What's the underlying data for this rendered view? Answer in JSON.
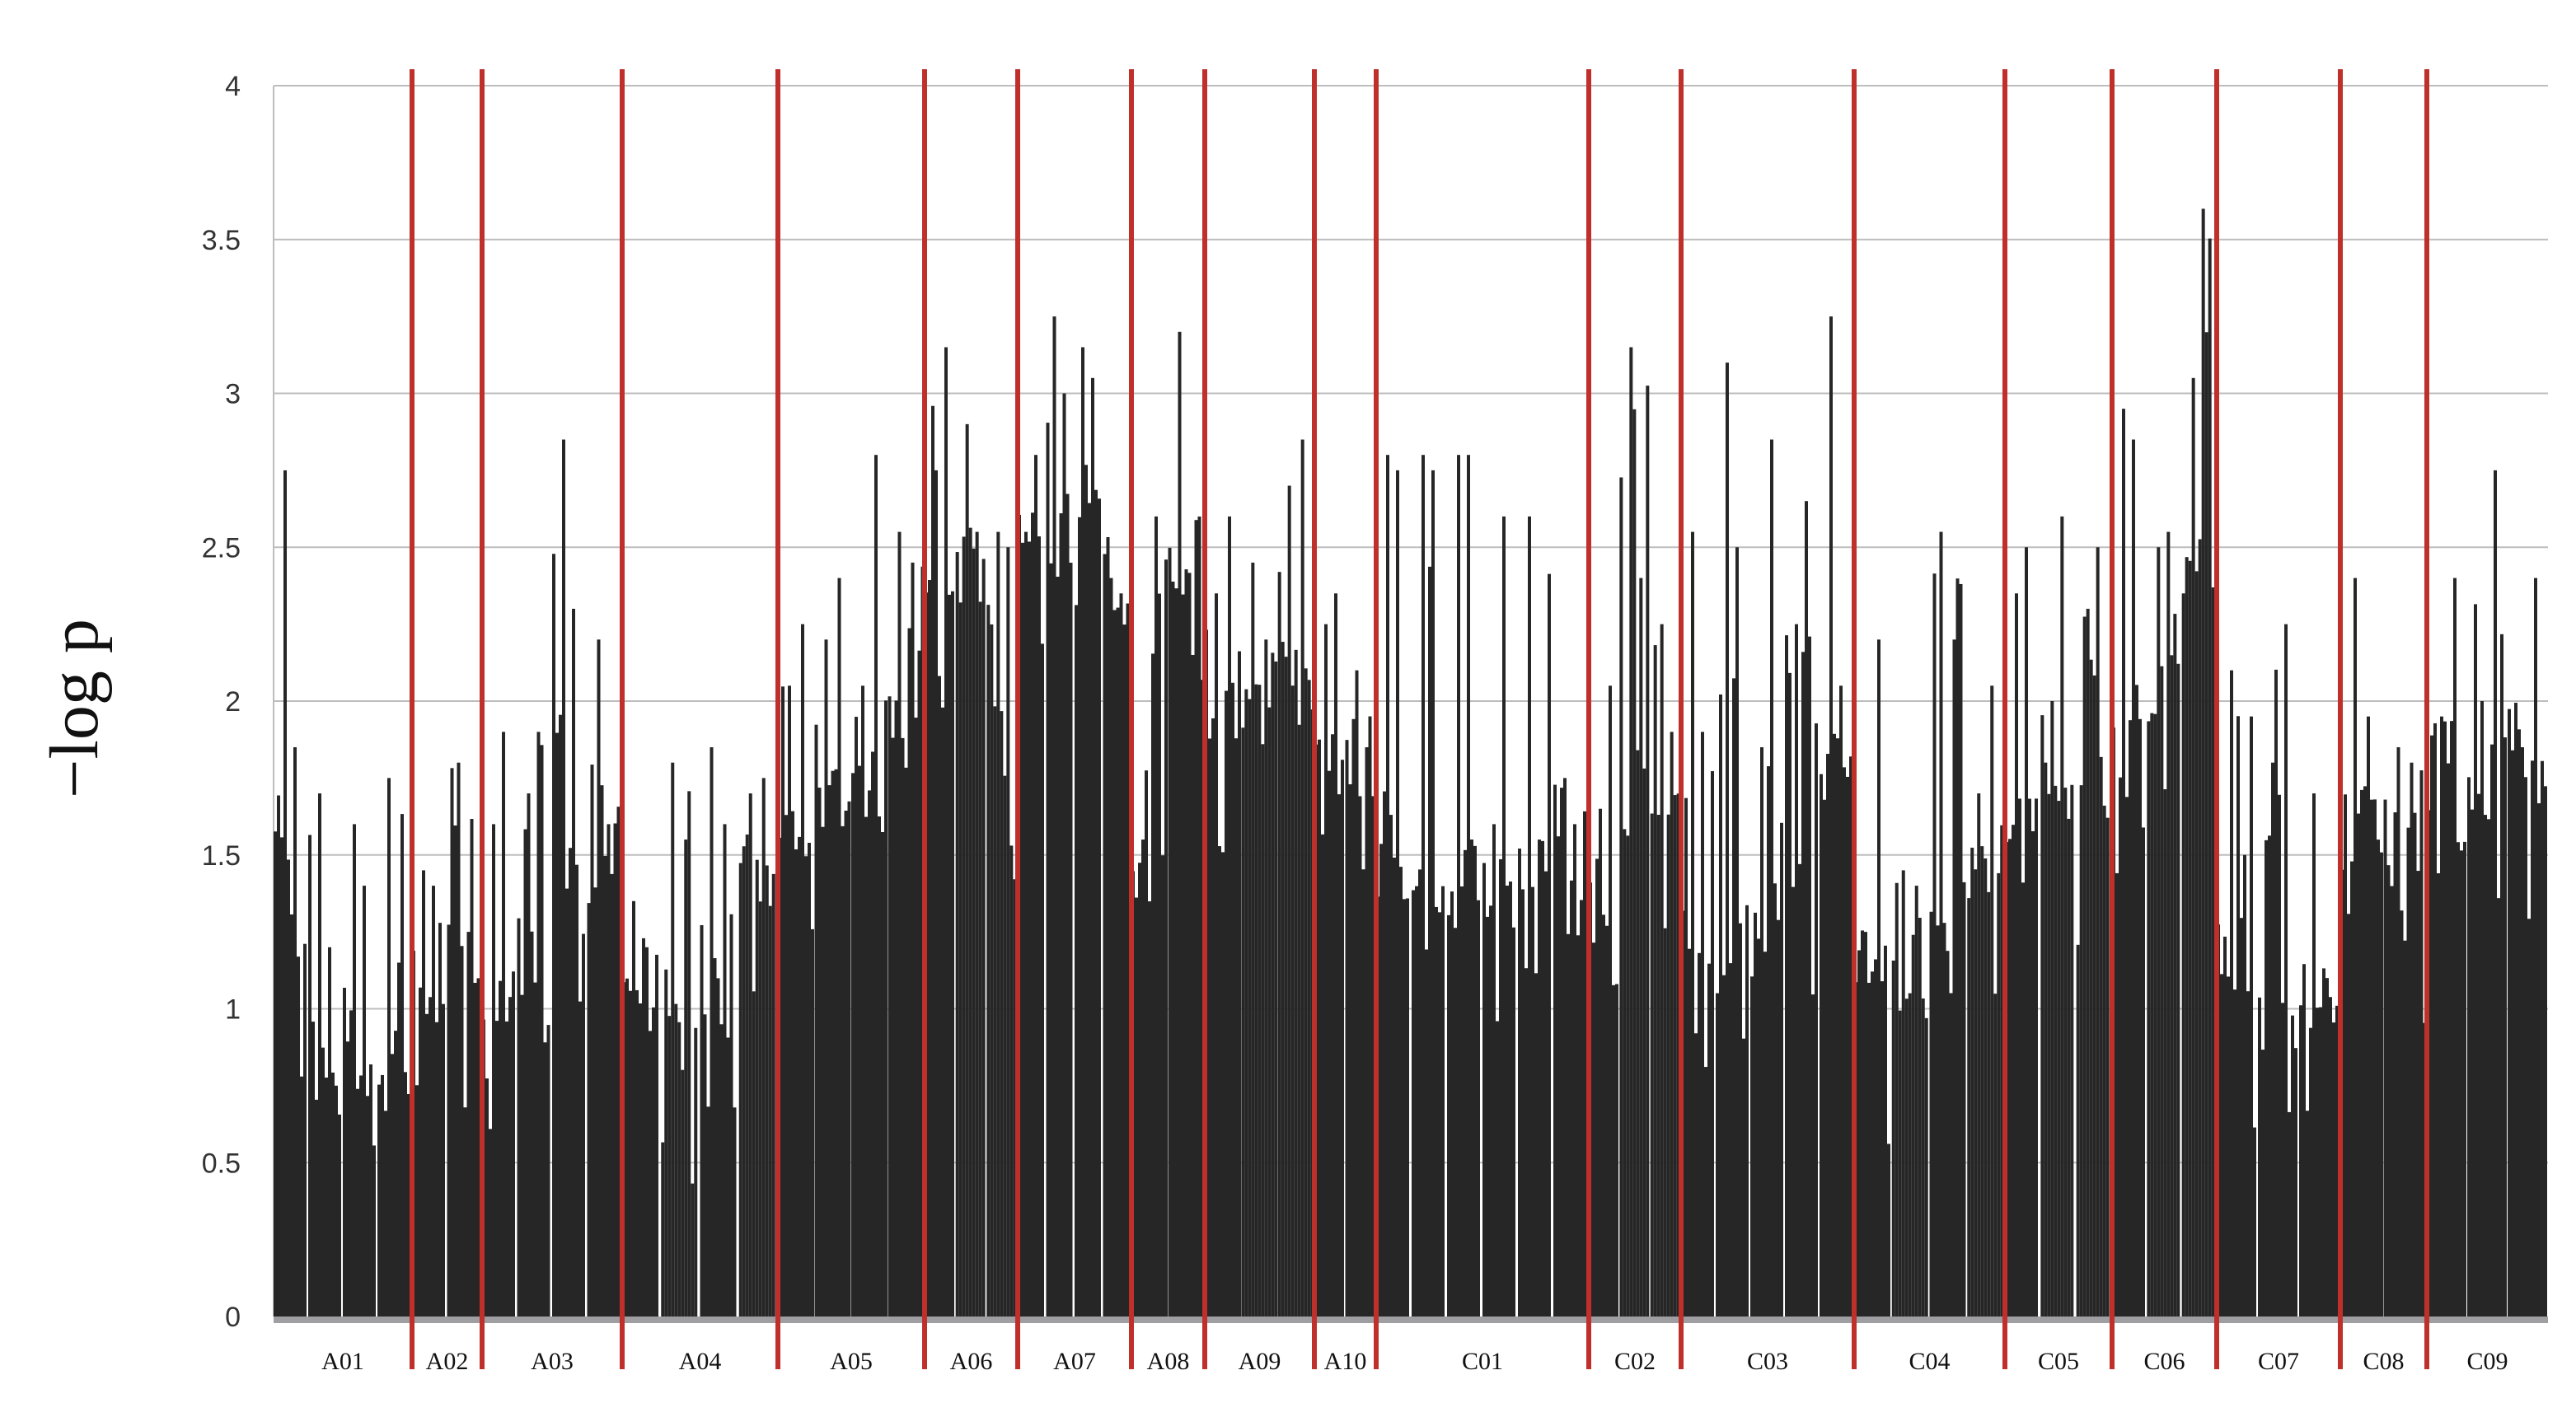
{
  "chart_data": {
    "type": "bar",
    "title": "",
    "xlabel": "",
    "ylabel": "−log p",
    "ylim": [
      0,
      4
    ],
    "yticks": [
      "0",
      "0.5",
      "1",
      "1.5",
      "2",
      "2.5",
      "3",
      "3.5",
      "4"
    ],
    "grid": "horizontal",
    "colors": {
      "bars": "#262626",
      "separators": "#c0302a",
      "grid": "#bdbdbd",
      "baseline": "#9e9ea3"
    },
    "chromosomes": [
      {
        "name": "A01",
        "segments": [
          [
            1.5,
            2.75,
            1.0,
            1.85
          ],
          [
            0.9,
            1.7,
            0.6,
            1.2
          ],
          [
            0.85,
            1.6,
            0.55,
            1.4
          ],
          [
            0.8,
            1.75,
            0.65,
            1.15
          ]
        ]
      },
      {
        "name": "A02",
        "segments": [
          [
            0.95,
            1.45,
            0.8,
            1.4
          ],
          [
            1.1,
            1.8,
            0.85,
            1.25
          ]
        ]
      },
      {
        "name": "A03",
        "segments": [
          [
            0.75,
            1.6,
            0.95,
            1.9
          ],
          [
            1.2,
            1.7,
            0.85,
            1.9
          ],
          [
            2.0,
            2.85,
            1.0,
            2.3
          ],
          [
            1.6,
            2.2,
            1.5,
            1.6
          ]
        ]
      },
      {
        "name": "A04",
        "segments": [
          [
            1.0,
            1.35,
            0.9,
            1.2
          ],
          [
            0.9,
            1.8,
            0.7,
            1.55
          ],
          [
            1.05,
            1.85,
            0.8,
            1.6
          ],
          [
            1.35,
            1.7,
            1.3,
            1.75
          ]
        ]
      },
      {
        "name": "A05",
        "segments": [
          [
            1.45,
            2.05,
            1.35,
            2.25
          ],
          [
            1.6,
            2.2,
            1.55,
            2.4
          ],
          [
            1.65,
            2.05,
            1.55,
            2.8
          ],
          [
            1.8,
            2.55,
            1.95,
            2.45
          ]
        ]
      },
      {
        "name": "A06",
        "segments": [
          [
            2.25,
            2.75,
            2.25,
            3.15
          ],
          [
            2.3,
            2.9,
            2.3,
            2.55
          ],
          [
            2.2,
            2.55,
            1.3,
            2.5
          ]
        ]
      },
      {
        "name": "A07",
        "segments": [
          [
            2.4,
            2.55,
            2.35,
            2.8
          ],
          [
            2.45,
            3.25,
            2.6,
            3.0
          ],
          [
            2.45,
            3.15,
            2.65,
            3.05
          ],
          [
            2.35,
            2.4,
            2.2,
            2.35
          ]
        ]
      },
      {
        "name": "A08",
        "segments": [
          [
            1.25,
            1.55,
            2.35,
            2.6
          ],
          [
            2.3,
            3.2,
            2.4,
            2.15
          ]
        ]
      },
      {
        "name": "A09",
        "segments": [
          [
            1.85,
            2.35,
            1.8,
            2.6
          ],
          [
            1.95,
            2.45,
            1.95,
            2.2
          ],
          [
            1.95,
            2.7,
            1.9,
            2.85
          ]
        ]
      },
      {
        "name": "A10",
        "segments": [
          [
            1.7,
            2.25,
            1.65,
            2.35
          ],
          [
            1.75,
            2.1,
            1.6,
            1.85
          ]
        ]
      },
      {
        "name": "C01",
        "segments": [
          [
            1.55,
            2.8,
            1.3,
            2.75
          ],
          [
            1.2,
            2.8,
            1.25,
            2.75
          ],
          [
            1.25,
            2.8,
            1.35,
            2.8
          ],
          [
            1.3,
            1.6,
            1.2,
            2.6
          ],
          [
            1.35,
            2.6,
            1.3,
            1.55
          ],
          [
            1.25,
            1.75,
            1.2,
            1.6
          ]
        ]
      },
      {
        "name": "C02",
        "segments": [
          [
            1.2,
            1.65,
            1.05,
            2.05
          ],
          [
            1.5,
            3.15,
            1.75,
            2.4
          ],
          [
            1.55,
            2.25,
            1.6,
            1.9
          ]
        ]
      },
      {
        "name": "C03",
        "segments": [
          [
            1.25,
            2.55,
            0.95,
            1.9
          ],
          [
            1.0,
            3.1,
            1.15,
            2.5
          ],
          [
            1.1,
            1.85,
            1.2,
            2.85
          ],
          [
            1.3,
            2.25,
            1.35,
            2.65
          ],
          [
            1.6,
            3.25,
            1.75,
            2.05
          ]
        ]
      },
      {
        "name": "C04",
        "segments": [
          [
            1.05,
            1.25,
            0.9,
            2.2
          ],
          [
            1.0,
            1.45,
            0.85,
            1.4
          ],
          [
            1.15,
            2.55,
            1.2,
            2.2
          ],
          [
            1.3,
            1.7,
            1.4,
            2.05
          ]
        ]
      },
      {
        "name": "C05",
        "segments": [
          [
            1.4,
            2.35,
            1.6,
            2.5
          ],
          [
            1.6,
            2.0,
            1.55,
            2.6
          ],
          [
            1.5,
            2.3,
            1.6,
            2.5
          ]
        ]
      },
      {
        "name": "C06",
        "segments": [
          [
            1.7,
            2.95,
            1.85,
            2.85
          ],
          [
            1.8,
            2.5,
            2.1,
            2.55
          ],
          [
            2.3,
            3.05,
            2.35,
            3.6
          ]
        ]
      },
      {
        "name": "C07",
        "segments": [
          [
            1.05,
            2.1,
            0.95,
            1.5
          ],
          [
            0.85,
            1.8,
            0.8,
            2.25
          ],
          [
            1.0,
            1.7,
            0.95,
            1.1
          ]
        ]
      },
      {
        "name": "C08",
        "segments": [
          [
            1.45,
            2.4,
            1.5,
            1.95
          ],
          [
            1.45,
            1.85,
            0.9,
            1.8
          ]
        ]
      },
      {
        "name": "C09",
        "segments": [
          [
            1.45,
            1.95,
            1.4,
            2.4
          ],
          [
            1.55,
            2.0,
            1.65,
            2.75
          ],
          [
            1.75,
            1.85,
            1.55,
            2.4
          ]
        ]
      }
    ]
  }
}
